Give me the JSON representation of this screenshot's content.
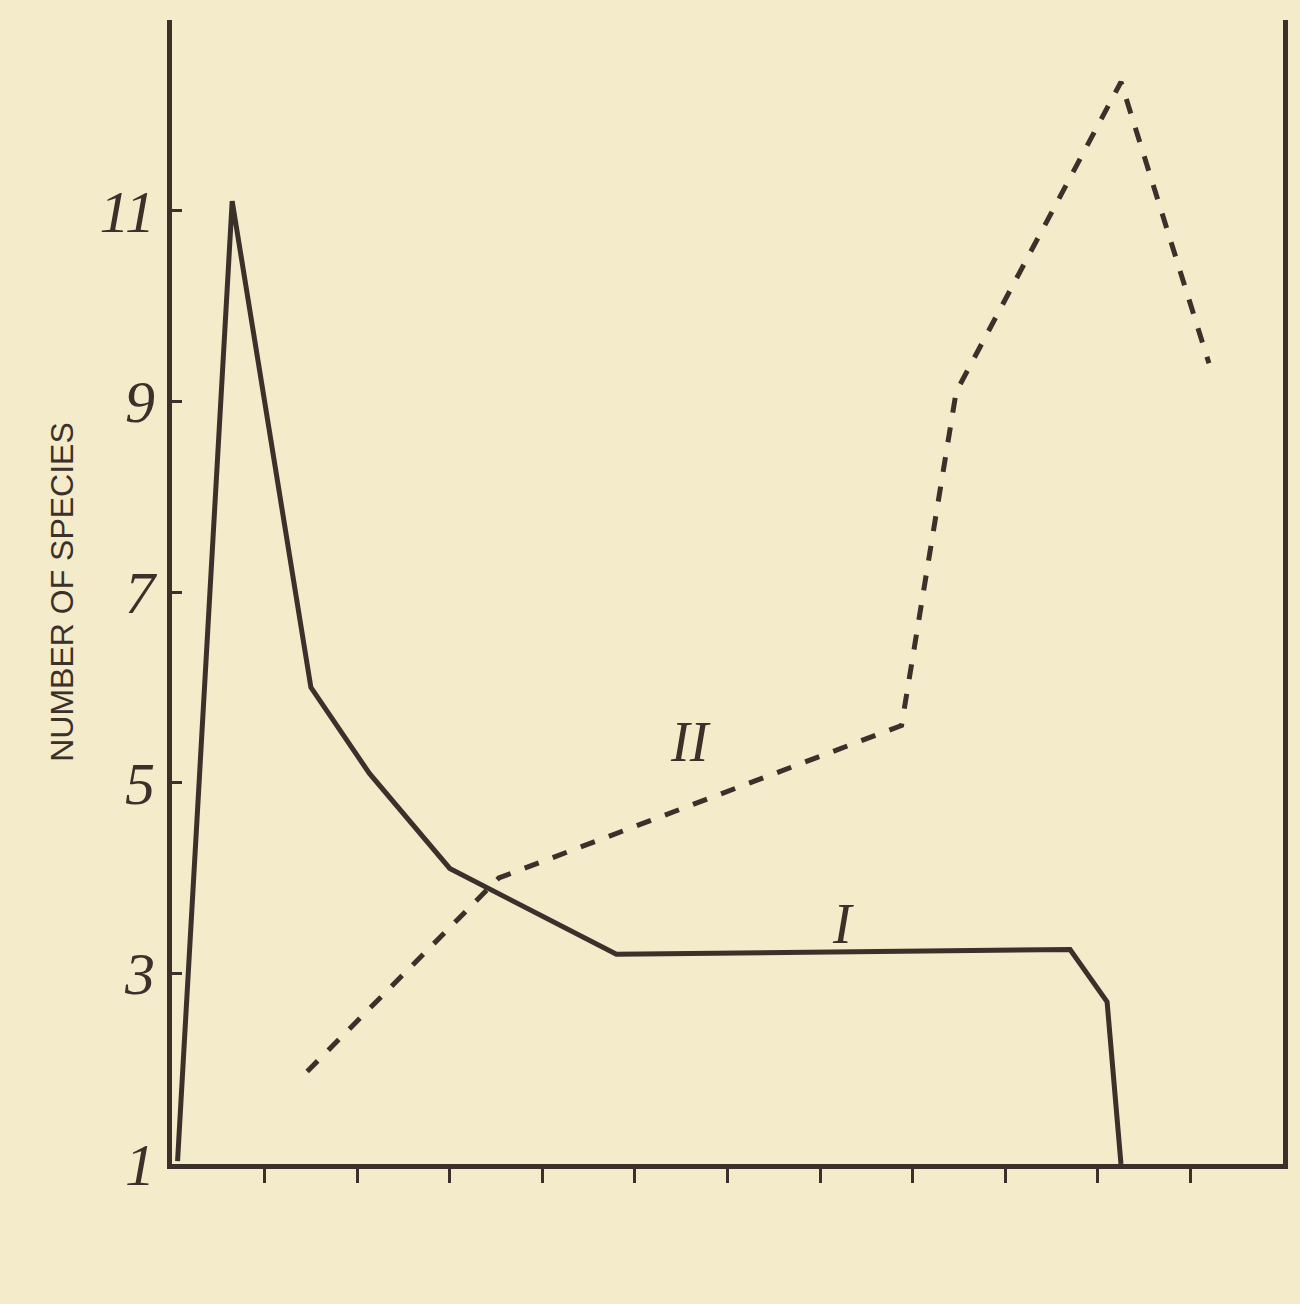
{
  "chart_data": {
    "type": "line",
    "y_label": "NUMBER OF SPECIES",
    "series": [
      {
        "name": "I",
        "line_style": "solid",
        "color": "#3b302a",
        "x": [
          0.06,
          0.65,
          1.5,
          2.13,
          3.0,
          4.8,
          9.7,
          10.1,
          10.25
        ],
        "values": [
          1.03,
          11.1,
          6.0,
          5.1,
          4.1,
          3.2,
          3.25,
          2.7,
          1.0
        ]
      },
      {
        "name": "II",
        "line_style": "dash",
        "color": "#3b302a",
        "x": [
          1.46,
          3.53,
          7.88,
          8.47,
          10.25,
          11.2
        ],
        "values": [
          1.97,
          4.0,
          5.6,
          9.1,
          12.35,
          9.4
        ]
      }
    ],
    "xlim": [
      0,
      12
    ],
    "xticks": [
      1,
      2,
      3,
      4,
      5,
      6,
      7,
      8,
      9,
      10,
      11
    ],
    "ylim": [
      1,
      13
    ],
    "yticks": [
      1,
      3,
      5,
      7,
      9,
      11
    ],
    "tick_labels": "y",
    "grid": false
  }
}
